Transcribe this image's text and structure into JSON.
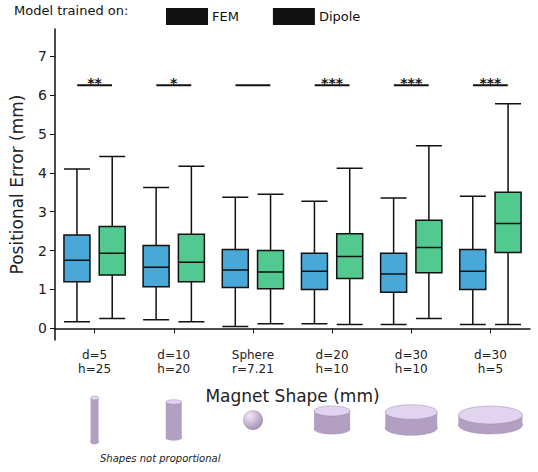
{
  "chart_data": {
    "type": "boxplot",
    "legend_title": "Model trained on:",
    "legend": "top-left",
    "categories": [
      "d=5\nh=25",
      "d=10\nh=20",
      "Sphere\nr=7.21",
      "d=20\nh=10",
      "d=30\nh=10",
      "d=30\nh=5"
    ],
    "series": [
      {
        "name": "FEM",
        "color": "#4aa8d8",
        "values": [
          [
            0.17,
            1.2,
            1.75,
            2.4,
            4.1
          ],
          [
            0.22,
            1.07,
            1.57,
            2.13,
            3.62
          ],
          [
            0.05,
            1.05,
            1.5,
            2.03,
            3.37
          ],
          [
            0.12,
            1.0,
            1.47,
            1.93,
            3.27
          ],
          [
            0.1,
            0.93,
            1.4,
            1.93,
            3.35
          ],
          [
            0.1,
            1.0,
            1.47,
            2.03,
            3.4
          ]
        ]
      },
      {
        "name": "Dipole",
        "color": "#52c98f",
        "values": [
          [
            0.25,
            1.37,
            1.93,
            2.62,
            4.42
          ],
          [
            0.17,
            1.2,
            1.7,
            2.42,
            4.17
          ],
          [
            0.12,
            1.02,
            1.45,
            2.0,
            3.45
          ],
          [
            0.1,
            1.28,
            1.85,
            2.43,
            4.12
          ],
          [
            0.25,
            1.43,
            2.08,
            2.78,
            4.7
          ],
          [
            0.1,
            1.95,
            2.7,
            3.5,
            5.78
          ]
        ]
      }
    ],
    "significance": {
      "y": 6.25,
      "labels": [
        "**",
        "*",
        null,
        "***",
        "***",
        "***"
      ]
    },
    "y_label": "Positional Error (mm)",
    "x_label": "Magnet Shape (mm)",
    "ylim": [
      -0.3,
      7.7
    ],
    "yticks": [
      0,
      1,
      2,
      3,
      4,
      5,
      6,
      7
    ],
    "grid": false,
    "footnote": "Shapes not proportional"
  }
}
